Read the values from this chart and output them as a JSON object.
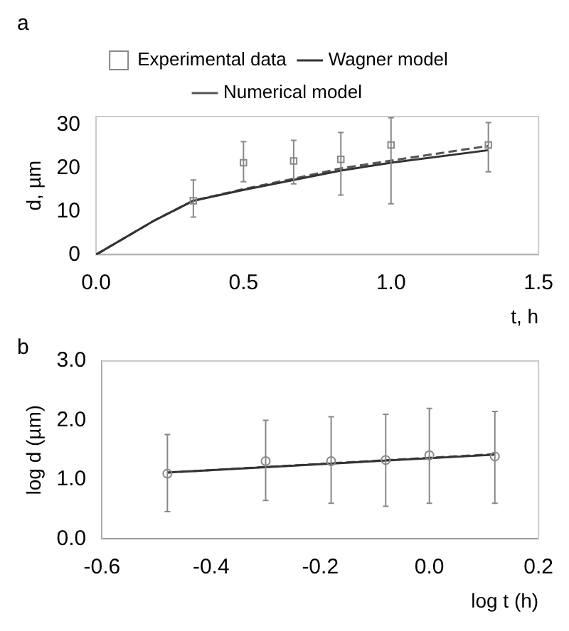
{
  "chart_data": [
    {
      "type": "scatter",
      "title": "a",
      "xlabel": "t, h",
      "ylabel": "d, µm",
      "xlim": [
        0,
        1.5
      ],
      "xticks": [
        {
          "value": 0,
          "label": "0.0"
        },
        {
          "value": 0.5,
          "label": "0.5"
        },
        {
          "value": 1,
          "label": "1.0"
        },
        {
          "value": 1.5,
          "label": "1.5"
        }
      ],
      "ylim": [
        0,
        32
      ],
      "yticks": [
        0,
        10,
        20,
        30
      ],
      "legend": "top",
      "grid": false,
      "series": [
        {
          "name": "Experimental data",
          "type": "scatter",
          "marker": "square",
          "color": "#888888",
          "x": [
            0.33,
            0.5,
            0.67,
            0.83,
            1.0,
            1.33
          ],
          "values": [
            12.5,
            21.3,
            21.7,
            22.1,
            25.4,
            25.4
          ],
          "errors": [
            [
              8.7,
              17.3
            ],
            [
              16.9,
              26.2
            ],
            [
              16.4,
              26.5
            ],
            [
              13.8,
              28.3
            ],
            [
              11.8,
              31.7
            ],
            [
              19.2,
              30.6
            ]
          ]
        },
        {
          "name": "Wagner model",
          "type": "line",
          "line_style": "solid",
          "marker": "none",
          "color": "#333333",
          "x": [
            0,
            0.2,
            0.33,
            0.5,
            0.67,
            0.83,
            1.0,
            1.33
          ],
          "values": [
            0,
            8,
            12.5,
            15,
            17.3,
            19.5,
            21.3,
            24.2
          ]
        },
        {
          "name": "Numerical model",
          "type": "line",
          "line_style": "dashed",
          "marker": "none",
          "color": "#555555",
          "x": [
            0,
            0.2,
            0.33,
            0.5,
            0.67,
            0.83,
            1.0,
            1.33
          ],
          "values": [
            0,
            8,
            12.5,
            15.2,
            17.6,
            20,
            21.8,
            25.2
          ]
        }
      ]
    },
    {
      "type": "scatter",
      "title": "b",
      "xlabel": "log t (h)",
      "ylabel": "log d (µm)",
      "xlim": [
        -0.6,
        0.2
      ],
      "xticks": [
        -0.6,
        -0.4,
        -0.2,
        {
          "value": 0,
          "label": "0.0"
        },
        0.2
      ],
      "ylim": [
        0,
        3
      ],
      "yticks": [
        {
          "value": 0,
          "label": "0.0"
        },
        {
          "value": 1,
          "label": "1.0"
        },
        {
          "value": 2,
          "label": "2.0"
        },
        {
          "value": 3,
          "label": "3.0"
        }
      ],
      "legend": false,
      "grid": false,
      "series": [
        {
          "type": "scatter",
          "marker": "circle",
          "color": "#888888",
          "x": [
            -0.48,
            -0.3,
            -0.18,
            -0.08,
            0,
            0.12
          ],
          "values": [
            1.1,
            1.31,
            1.31,
            1.33,
            1.41,
            1.39
          ],
          "errors": [
            [
              0.46,
              1.76
            ],
            [
              0.65,
              2.0
            ],
            [
              0.6,
              2.06
            ],
            [
              0.55,
              2.1
            ],
            [
              0.6,
              2.2
            ],
            [
              0.6,
              2.15
            ]
          ]
        },
        {
          "type": "line",
          "line_style": "solid",
          "marker": "none",
          "color": "#333333",
          "x": [
            -0.48,
            0.12
          ],
          "values": [
            1.12,
            1.42
          ]
        },
        {
          "type": "line",
          "line_style": "dashed",
          "marker": "none",
          "color": "#555555",
          "x": [
            -0.48,
            0.12
          ],
          "values": [
            1.12,
            1.43
          ]
        }
      ]
    }
  ]
}
